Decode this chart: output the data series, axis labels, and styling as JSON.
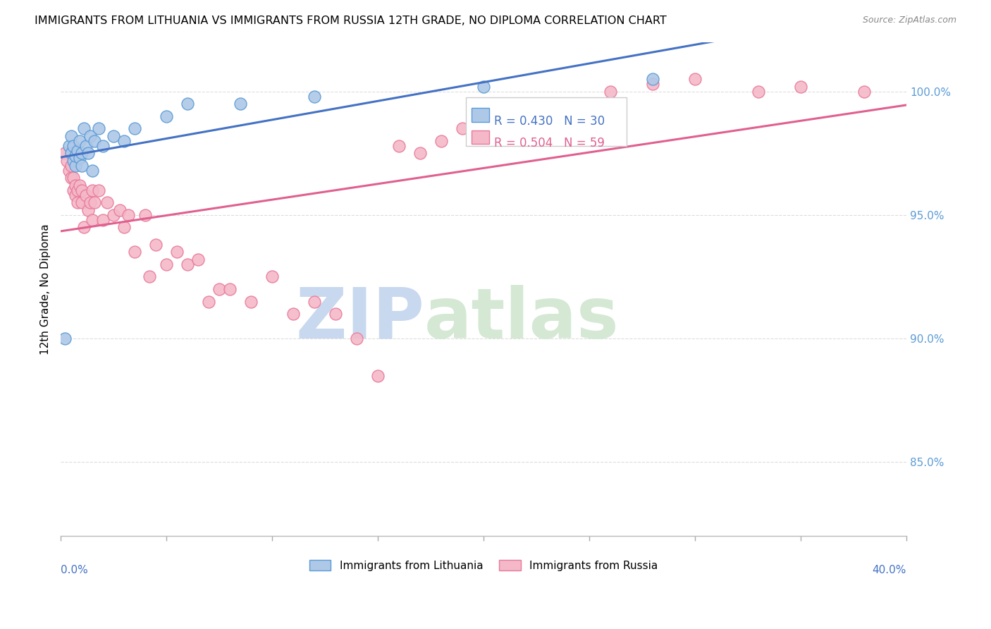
{
  "title": "IMMIGRANTS FROM LITHUANIA VS IMMIGRANTS FROM RUSSIA 12TH GRADE, NO DIPLOMA CORRELATION CHART",
  "source": "Source: ZipAtlas.com",
  "ylabel": "12th Grade, No Diploma",
  "xlim": [
    0.0,
    40.0
  ],
  "ylim": [
    82.0,
    102.0
  ],
  "legend_blue_label": "Immigrants from Lithuania",
  "legend_pink_label": "Immigrants from Russia",
  "R_blue": 0.43,
  "N_blue": 30,
  "R_pink": 0.504,
  "N_pink": 59,
  "color_blue_fill": "#aec8e8",
  "color_blue_edge": "#5b9bd5",
  "color_pink_fill": "#f4b8c8",
  "color_pink_edge": "#e87a9a",
  "color_blue_line": "#4472c4",
  "color_pink_line": "#e06090",
  "color_blue_text": "#4472c4",
  "color_pink_text": "#e06090",
  "color_right_axis": "#5b9bd5",
  "watermark_zip": "ZIP",
  "watermark_atlas": "atlas",
  "watermark_color_zip": "#c8d8ee",
  "watermark_color_atlas": "#d4e8d4",
  "blue_x": [
    0.2,
    0.4,
    0.5,
    0.5,
    0.6,
    0.6,
    0.7,
    0.7,
    0.8,
    0.9,
    0.9,
    1.0,
    1.0,
    1.1,
    1.2,
    1.3,
    1.4,
    1.5,
    1.6,
    1.8,
    2.0,
    2.5,
    3.0,
    3.5,
    5.0,
    6.0,
    8.5,
    12.0,
    20.0,
    28.0
  ],
  "blue_y": [
    90.0,
    97.8,
    97.5,
    98.2,
    97.2,
    97.8,
    97.0,
    97.4,
    97.6,
    97.3,
    98.0,
    97.0,
    97.5,
    98.5,
    97.8,
    97.5,
    98.2,
    96.8,
    98.0,
    98.5,
    97.8,
    98.2,
    98.0,
    98.5,
    99.0,
    99.5,
    99.5,
    99.8,
    100.2,
    100.5
  ],
  "pink_x": [
    0.2,
    0.3,
    0.4,
    0.5,
    0.5,
    0.6,
    0.6,
    0.7,
    0.7,
    0.8,
    0.8,
    0.9,
    1.0,
    1.0,
    1.1,
    1.2,
    1.3,
    1.4,
    1.5,
    1.5,
    1.6,
    1.8,
    2.0,
    2.2,
    2.5,
    2.8,
    3.0,
    3.2,
    3.5,
    4.0,
    4.2,
    4.5,
    5.0,
    5.5,
    6.0,
    6.5,
    7.0,
    7.5,
    8.0,
    9.0,
    10.0,
    11.0,
    12.0,
    13.0,
    14.0,
    15.0,
    16.0,
    17.0,
    18.0,
    19.0,
    20.0,
    22.0,
    24.0,
    26.0,
    28.0,
    30.0,
    33.0,
    35.0,
    38.0
  ],
  "pink_y": [
    97.5,
    97.2,
    96.8,
    96.5,
    97.0,
    96.0,
    96.5,
    95.8,
    96.2,
    95.5,
    96.0,
    96.2,
    95.5,
    96.0,
    94.5,
    95.8,
    95.2,
    95.5,
    94.8,
    96.0,
    95.5,
    96.0,
    94.8,
    95.5,
    95.0,
    95.2,
    94.5,
    95.0,
    93.5,
    95.0,
    92.5,
    93.8,
    93.0,
    93.5,
    93.0,
    93.2,
    91.5,
    92.0,
    92.0,
    91.5,
    92.5,
    91.0,
    91.5,
    91.0,
    90.0,
    88.5,
    97.8,
    97.5,
    98.0,
    98.5,
    99.0,
    98.8,
    99.5,
    100.0,
    100.3,
    100.5,
    100.0,
    100.2,
    100.0
  ],
  "yaxis_ticks": [
    85.0,
    90.0,
    95.0,
    100.0
  ],
  "yaxis_labels": [
    "85.0%",
    "90.0%",
    "95.0%",
    "100.0%"
  ],
  "grid_color": "#dddddd",
  "bottom_tick_color": "#aaaaaa"
}
